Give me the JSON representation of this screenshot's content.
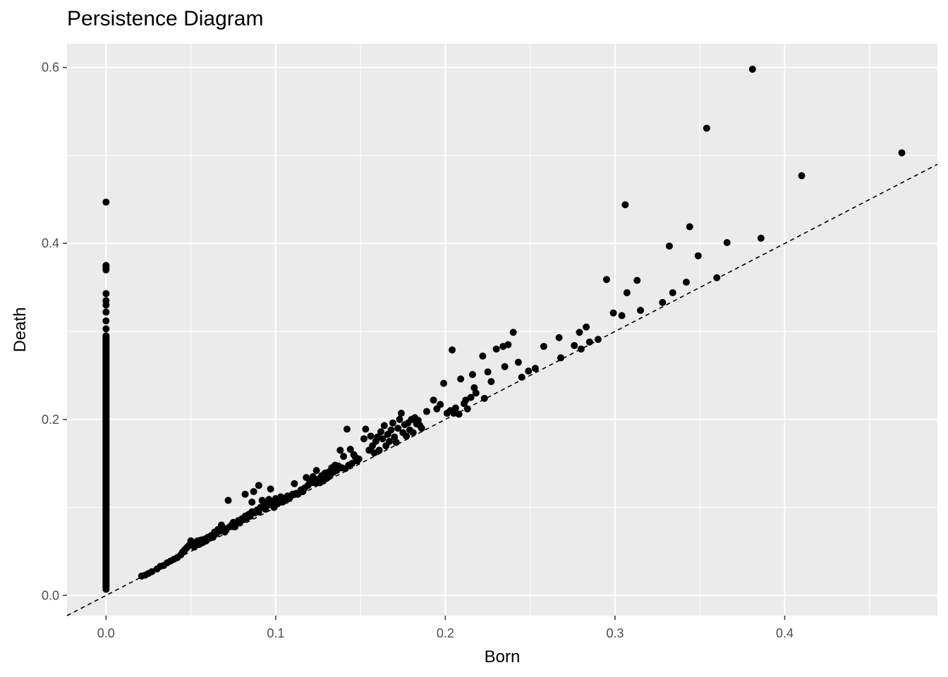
{
  "chart_data": {
    "type": "scatter",
    "title": "Persistence Diagram",
    "xlabel": "Born",
    "ylabel": "Death",
    "xlim": [
      -0.023,
      0.49
    ],
    "ylim": [
      -0.023,
      0.627
    ],
    "x_ticks": [
      0.0,
      0.1,
      0.2,
      0.3,
      0.4
    ],
    "x_tick_labels": [
      "0.0",
      "0.1",
      "0.2",
      "0.3",
      "0.4"
    ],
    "y_ticks": [
      0.0,
      0.2,
      0.4,
      0.6
    ],
    "y_tick_labels": [
      "0.0",
      "0.2",
      "0.4",
      "0.6"
    ],
    "grid": true,
    "background": "#ebebeb",
    "grid_color": "#ffffff",
    "point_color": "#000000",
    "reference_line": {
      "type": "y=x",
      "style": "dashed",
      "color": "#000000"
    },
    "born_zero_column": {
      "x": 0.0,
      "y_min": 0.007,
      "y_max": 0.296,
      "extra_y": [
        0.303,
        0.312,
        0.322,
        0.33,
        0.335,
        0.343,
        0.37,
        0.373,
        0.375,
        0.447
      ]
    },
    "points": [
      [
        0.021,
        0.022
      ],
      [
        0.023,
        0.023
      ],
      [
        0.025,
        0.025
      ],
      [
        0.027,
        0.027
      ],
      [
        0.03,
        0.03
      ],
      [
        0.032,
        0.033
      ],
      [
        0.034,
        0.034
      ],
      [
        0.036,
        0.037
      ],
      [
        0.038,
        0.039
      ],
      [
        0.04,
        0.041
      ],
      [
        0.042,
        0.043
      ],
      [
        0.044,
        0.046
      ],
      [
        0.045,
        0.049
      ],
      [
        0.046,
        0.051
      ],
      [
        0.047,
        0.053
      ],
      [
        0.048,
        0.055
      ],
      [
        0.049,
        0.057
      ],
      [
        0.05,
        0.058
      ],
      [
        0.05,
        0.062
      ],
      [
        0.052,
        0.055
      ],
      [
        0.053,
        0.06
      ],
      [
        0.054,
        0.062
      ],
      [
        0.055,
        0.058
      ],
      [
        0.056,
        0.063
      ],
      [
        0.057,
        0.06
      ],
      [
        0.058,
        0.064
      ],
      [
        0.059,
        0.062
      ],
      [
        0.06,
        0.066
      ],
      [
        0.061,
        0.065
      ],
      [
        0.062,
        0.068
      ],
      [
        0.063,
        0.066
      ],
      [
        0.064,
        0.072
      ],
      [
        0.065,
        0.07
      ],
      [
        0.066,
        0.075
      ],
      [
        0.067,
        0.073
      ],
      [
        0.068,
        0.08
      ],
      [
        0.069,
        0.075
      ],
      [
        0.07,
        0.072
      ],
      [
        0.071,
        0.076
      ],
      [
        0.072,
        0.108
      ],
      [
        0.073,
        0.078
      ],
      [
        0.074,
        0.08
      ],
      [
        0.075,
        0.083
      ],
      [
        0.076,
        0.078
      ],
      [
        0.077,
        0.082
      ],
      [
        0.078,
        0.085
      ],
      [
        0.079,
        0.084
      ],
      [
        0.08,
        0.087
      ],
      [
        0.081,
        0.086
      ],
      [
        0.082,
        0.09
      ],
      [
        0.082,
        0.115
      ],
      [
        0.083,
        0.088
      ],
      [
        0.084,
        0.092
      ],
      [
        0.085,
        0.09
      ],
      [
        0.086,
        0.095
      ],
      [
        0.086,
        0.106
      ],
      [
        0.087,
        0.118
      ],
      [
        0.088,
        0.094
      ],
      [
        0.089,
        0.097
      ],
      [
        0.09,
        0.095
      ],
      [
        0.09,
        0.125
      ],
      [
        0.091,
        0.1
      ],
      [
        0.092,
        0.108
      ],
      [
        0.093,
        0.104
      ],
      [
        0.094,
        0.098
      ],
      [
        0.095,
        0.102
      ],
      [
        0.096,
        0.109
      ],
      [
        0.097,
        0.121
      ],
      [
        0.098,
        0.105
      ],
      [
        0.099,
        0.1
      ],
      [
        0.1,
        0.11
      ],
      [
        0.101,
        0.104
      ],
      [
        0.102,
        0.108
      ],
      [
        0.103,
        0.112
      ],
      [
        0.104,
        0.106
      ],
      [
        0.105,
        0.11
      ],
      [
        0.106,
        0.108
      ],
      [
        0.107,
        0.113
      ],
      [
        0.108,
        0.11
      ],
      [
        0.109,
        0.113
      ],
      [
        0.11,
        0.115
      ],
      [
        0.111,
        0.127
      ],
      [
        0.112,
        0.116
      ],
      [
        0.113,
        0.115
      ],
      [
        0.114,
        0.117
      ],
      [
        0.115,
        0.12
      ],
      [
        0.116,
        0.118
      ],
      [
        0.117,
        0.122
      ],
      [
        0.118,
        0.134
      ],
      [
        0.119,
        0.125
      ],
      [
        0.12,
        0.13
      ],
      [
        0.121,
        0.128
      ],
      [
        0.122,
        0.135
      ],
      [
        0.123,
        0.128
      ],
      [
        0.124,
        0.142
      ],
      [
        0.125,
        0.132
      ],
      [
        0.126,
        0.128
      ],
      [
        0.127,
        0.136
      ],
      [
        0.128,
        0.13
      ],
      [
        0.129,
        0.139
      ],
      [
        0.13,
        0.133
      ],
      [
        0.131,
        0.14
      ],
      [
        0.132,
        0.136
      ],
      [
        0.133,
        0.145
      ],
      [
        0.134,
        0.14
      ],
      [
        0.135,
        0.148
      ],
      [
        0.136,
        0.142
      ],
      [
        0.137,
        0.147
      ],
      [
        0.138,
        0.165
      ],
      [
        0.139,
        0.145
      ],
      [
        0.14,
        0.158
      ],
      [
        0.141,
        0.144
      ],
      [
        0.142,
        0.189
      ],
      [
        0.143,
        0.148
      ],
      [
        0.144,
        0.166
      ],
      [
        0.145,
        0.15
      ],
      [
        0.146,
        0.16
      ],
      [
        0.147,
        0.157
      ],
      [
        0.148,
        0.153
      ],
      [
        0.149,
        0.155
      ],
      [
        0.152,
        0.178
      ],
      [
        0.153,
        0.189
      ],
      [
        0.155,
        0.165
      ],
      [
        0.156,
        0.181
      ],
      [
        0.157,
        0.17
      ],
      [
        0.158,
        0.162
      ],
      [
        0.159,
        0.175
      ],
      [
        0.16,
        0.18
      ],
      [
        0.161,
        0.165
      ],
      [
        0.162,
        0.186
      ],
      [
        0.163,
        0.178
      ],
      [
        0.164,
        0.193
      ],
      [
        0.165,
        0.17
      ],
      [
        0.166,
        0.183
      ],
      [
        0.167,
        0.175
      ],
      [
        0.168,
        0.188
      ],
      [
        0.169,
        0.196
      ],
      [
        0.17,
        0.18
      ],
      [
        0.171,
        0.174
      ],
      [
        0.172,
        0.19
      ],
      [
        0.173,
        0.2
      ],
      [
        0.174,
        0.207
      ],
      [
        0.175,
        0.185
      ],
      [
        0.176,
        0.194
      ],
      [
        0.177,
        0.181
      ],
      [
        0.178,
        0.196
      ],
      [
        0.179,
        0.188
      ],
      [
        0.18,
        0.2
      ],
      [
        0.181,
        0.185
      ],
      [
        0.182,
        0.202
      ],
      [
        0.183,
        0.195
      ],
      [
        0.184,
        0.199
      ],
      [
        0.185,
        0.193
      ],
      [
        0.186,
        0.19
      ],
      [
        0.189,
        0.209
      ],
      [
        0.193,
        0.222
      ],
      [
        0.195,
        0.212
      ],
      [
        0.197,
        0.217
      ],
      [
        0.199,
        0.241
      ],
      [
        0.201,
        0.207
      ],
      [
        0.203,
        0.21
      ],
      [
        0.204,
        0.279
      ],
      [
        0.205,
        0.207
      ],
      [
        0.206,
        0.213
      ],
      [
        0.208,
        0.206
      ],
      [
        0.209,
        0.246
      ],
      [
        0.211,
        0.218
      ],
      [
        0.212,
        0.222
      ],
      [
        0.213,
        0.212
      ],
      [
        0.215,
        0.225
      ],
      [
        0.216,
        0.251
      ],
      [
        0.217,
        0.236
      ],
      [
        0.218,
        0.23
      ],
      [
        0.222,
        0.272
      ],
      [
        0.223,
        0.224
      ],
      [
        0.225,
        0.254
      ],
      [
        0.227,
        0.243
      ],
      [
        0.23,
        0.28
      ],
      [
        0.234,
        0.283
      ],
      [
        0.235,
        0.26
      ],
      [
        0.237,
        0.285
      ],
      [
        0.24,
        0.299
      ],
      [
        0.243,
        0.265
      ],
      [
        0.245,
        0.248
      ],
      [
        0.249,
        0.255
      ],
      [
        0.253,
        0.258
      ],
      [
        0.258,
        0.283
      ],
      [
        0.267,
        0.293
      ],
      [
        0.268,
        0.27
      ],
      [
        0.276,
        0.284
      ],
      [
        0.279,
        0.299
      ],
      [
        0.28,
        0.28
      ],
      [
        0.283,
        0.305
      ],
      [
        0.285,
        0.288
      ],
      [
        0.29,
        0.291
      ],
      [
        0.295,
        0.359
      ],
      [
        0.299,
        0.321
      ],
      [
        0.304,
        0.318
      ],
      [
        0.306,
        0.444
      ],
      [
        0.307,
        0.344
      ],
      [
        0.313,
        0.358
      ],
      [
        0.315,
        0.324
      ],
      [
        0.328,
        0.333
      ],
      [
        0.332,
        0.397
      ],
      [
        0.334,
        0.344
      ],
      [
        0.342,
        0.356
      ],
      [
        0.344,
        0.419
      ],
      [
        0.349,
        0.386
      ],
      [
        0.354,
        0.531
      ],
      [
        0.36,
        0.361
      ],
      [
        0.366,
        0.401
      ],
      [
        0.381,
        0.598
      ],
      [
        0.386,
        0.406
      ],
      [
        0.41,
        0.477
      ],
      [
        0.469,
        0.503
      ]
    ]
  }
}
